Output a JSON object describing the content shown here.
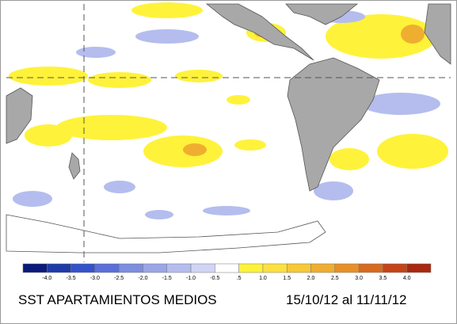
{
  "title": "SST APARTAMIENTOS MEDIOS",
  "period": "15/10/12 al 11/11/12",
  "colorbar": {
    "labels": [
      "-4.0",
      "-3.5",
      "-3.0",
      "-2.5",
      "-2.0",
      "-1.5",
      "-1.0",
      "-0.5",
      ".5",
      "1.0",
      "1.5",
      "2.0",
      "2.5",
      "3.0",
      "3.5",
      "4.0"
    ],
    "colors": [
      "#0a1a7a",
      "#1f3aa8",
      "#3552c8",
      "#5a6fd8",
      "#7d8de0",
      "#9aa6e6",
      "#b4bdee",
      "#d0d5f5",
      "#ffffff",
      "#fff23a",
      "#fde040",
      "#f7c935",
      "#f0ae30",
      "#e89028",
      "#d86a20",
      "#c44418",
      "#a82810"
    ]
  }
}
